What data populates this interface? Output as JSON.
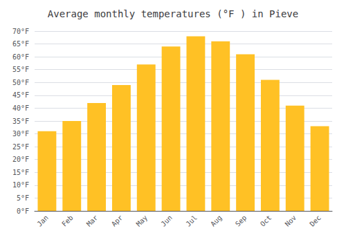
{
  "chart_data": {
    "type": "bar",
    "title": "Average monthly temperatures (°F ) in Pieve",
    "categories": [
      "Jan",
      "Feb",
      "Mar",
      "Apr",
      "May",
      "Jun",
      "Jul",
      "Aug",
      "Sep",
      "Oct",
      "Nov",
      "Dec"
    ],
    "values": [
      31,
      35,
      42,
      49,
      57,
      64,
      68,
      66,
      61,
      51,
      41,
      33
    ],
    "color": "#FFC125",
    "ylim": [
      0,
      70
    ],
    "yticks": [
      {
        "value": 0,
        "label": "0°F"
      },
      {
        "value": 5,
        "label": "5°F"
      },
      {
        "value": 10,
        "label": "10°F"
      },
      {
        "value": 15,
        "label": "15°F"
      },
      {
        "value": 20,
        "label": "20°F"
      },
      {
        "value": 25,
        "label": "25°F"
      },
      {
        "value": 30,
        "label": "30°F"
      },
      {
        "value": 35,
        "label": "35°F"
      },
      {
        "value": 40,
        "label": "40°F"
      },
      {
        "value": 45,
        "label": "45°F"
      },
      {
        "value": 50,
        "label": "50°F"
      },
      {
        "value": 55,
        "label": "55°F"
      },
      {
        "value": 60,
        "label": "60°F"
      },
      {
        "value": 65,
        "label": "65°F"
      },
      {
        "value": 70,
        "label": "70°F"
      }
    ],
    "grid": true
  }
}
